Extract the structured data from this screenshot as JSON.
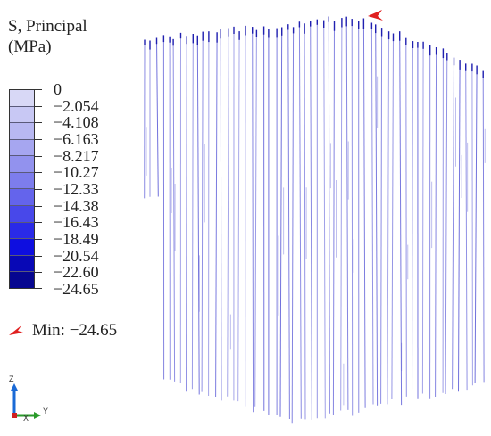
{
  "legend": {
    "title_line1": "S, Principal",
    "title_line2": "(MPa)",
    "values": [
      "0",
      "−2.054",
      "−4.108",
      "−6.163",
      "−8.217",
      "−10.27",
      "−12.33",
      "−14.38",
      "−16.43",
      "−18.49",
      "−20.54",
      "−22.60",
      "−24.65"
    ],
    "colors": [
      "#d8d8f6",
      "#c8c8f4",
      "#b8b8f2",
      "#a6a6f0",
      "#9292ee",
      "#7d7ded",
      "#6464ec",
      "#4848ea",
      "#2a2ae8",
      "#0e0ee0",
      "#0808b6",
      "#060690"
    ]
  },
  "min_marker": {
    "label": "Min: −24.65",
    "icon": "red-arrow-icon",
    "color": "#e02020"
  },
  "axes": {
    "z_label": "Z",
    "x_label": "X",
    "y_label": "Y",
    "z_color": "#1a6ad6",
    "y_color": "#2a9a2a",
    "x_color": "#d02020"
  },
  "plot": {
    "line_color": "#6060d8",
    "line_color_dark": "#2020b0"
  }
}
